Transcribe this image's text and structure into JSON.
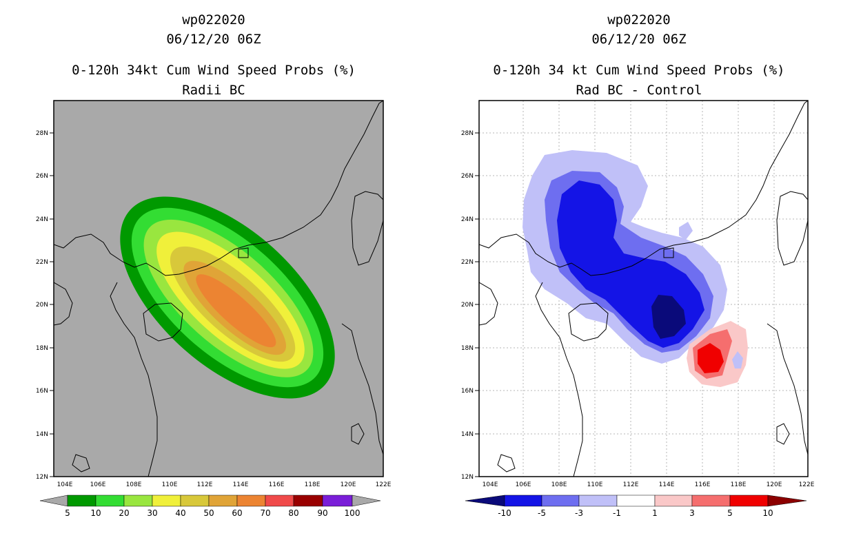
{
  "left_panel": {
    "title_line1": "wp022020",
    "title_line2": "06/12/20 06Z",
    "title_line3": "0-120h 34kt Cum Wind Speed Probs (%)",
    "title_line4": "Radii BC",
    "lat_labels": [
      "12N",
      "14N",
      "16N",
      "18N",
      "20N",
      "22N",
      "24N",
      "26N",
      "28N"
    ],
    "lon_labels": [
      "104E",
      "106E",
      "108E",
      "110E",
      "112E",
      "114E",
      "116E",
      "118E",
      "120E",
      "122E"
    ],
    "colorbar": {
      "labels": [
        "5",
        "10",
        "20",
        "30",
        "40",
        "50",
        "60",
        "70",
        "80",
        "90",
        "100"
      ],
      "colors": [
        "#009900",
        "#33dd33",
        "#99e63f",
        "#f0f03a",
        "#d8c83a",
        "#e0a437",
        "#ec8432",
        "#f04a4a",
        "#990000",
        "#7a1ed8"
      ],
      "end_color": "#a9a9a9"
    },
    "background_color": "#a9a9a9"
  },
  "right_panel": {
    "title_line1": "wp022020",
    "title_line2": "06/12/20 06Z",
    "title_line3": "0-120h 34 kt Cum Wind Speed Probs (%)",
    "title_line4": "Rad BC - Control",
    "lat_labels": [
      "12N",
      "14N",
      "16N",
      "18N",
      "20N",
      "22N",
      "24N",
      "26N",
      "28N"
    ],
    "lon_labels": [
      "104E",
      "106E",
      "108E",
      "110E",
      "112E",
      "114E",
      "116E",
      "118E",
      "120E",
      "122E"
    ],
    "colorbar": {
      "labels": [
        "-10",
        "-5",
        "-3",
        "-1",
        "1",
        "3",
        "5",
        "10"
      ],
      "colors": [
        "#0a0a7a",
        "#1414e6",
        "#6e6ef0",
        "#c0c0f8",
        "#ffffff",
        "#fac8c8",
        "#f56e6e",
        "#f00000",
        "#8c0000"
      ]
    }
  }
}
